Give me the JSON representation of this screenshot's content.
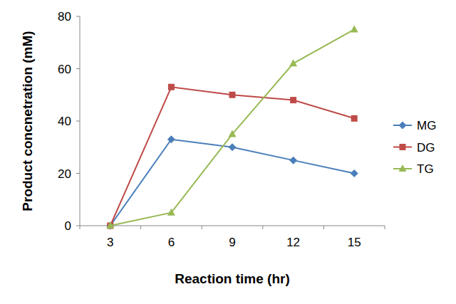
{
  "chart_data": {
    "type": "line",
    "x_label": "Reaction time (hr)",
    "y_label": "Product concnetration (mM)",
    "categories": [
      "3",
      "6",
      "9",
      "12",
      "15"
    ],
    "series": [
      {
        "name": "MG",
        "color": "#4a7ebb",
        "marker": "diamond",
        "values": [
          0,
          33,
          30,
          25,
          20
        ]
      },
      {
        "name": "DG",
        "color": "#be4b48",
        "marker": "square",
        "values": [
          0,
          53,
          50,
          48,
          41
        ]
      },
      {
        "name": "TG",
        "color": "#98b954",
        "marker": "triangle",
        "values": [
          0,
          5,
          35,
          62,
          75
        ]
      }
    ],
    "ylim": [
      0,
      80
    ],
    "yticks": [
      0,
      20,
      40,
      60,
      80
    ],
    "grid": false,
    "legend": "right"
  }
}
